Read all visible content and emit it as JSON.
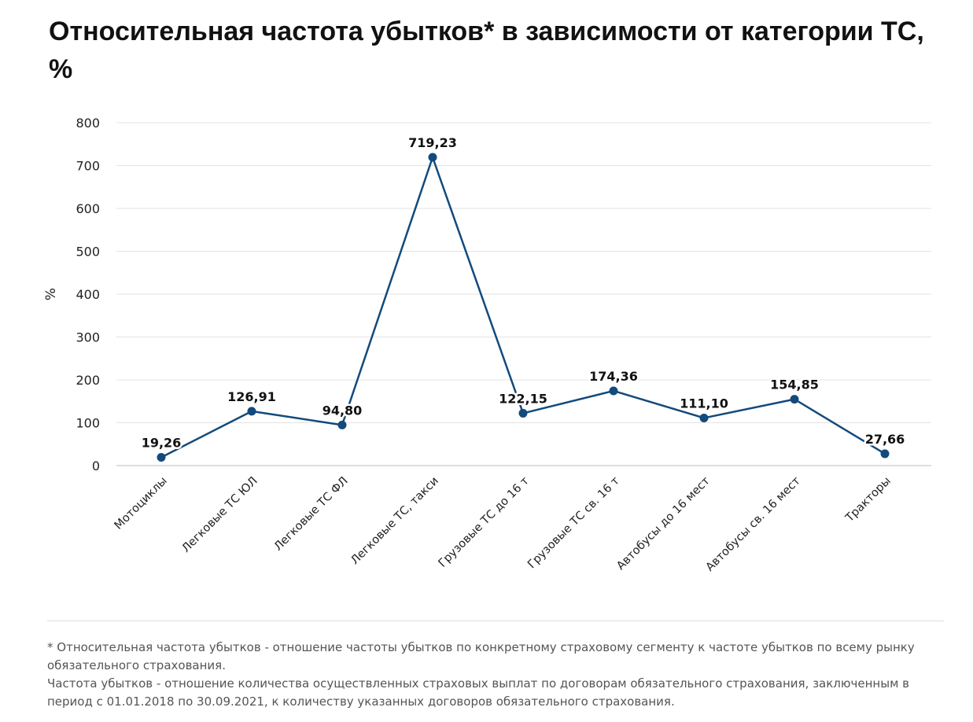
{
  "title": "Относительная частота убытков* в зависимости от категории ТС, %",
  "chart_data": {
    "type": "line",
    "ylabel": "%",
    "ylim": [
      0,
      800
    ],
    "yticks": [
      0,
      100,
      200,
      300,
      400,
      500,
      600,
      700,
      800
    ],
    "grid": true,
    "categories": [
      "Мотоциклы",
      "Легковые ТС ЮЛ",
      "Легковые ТС ФЛ",
      "Легковые ТС, такси",
      "Грузовые ТС до 16 т",
      "Грузовые ТС св. 16 т",
      "Автобусы до 16 мест",
      "Автобусы св. 16 мест",
      "Тракторы"
    ],
    "values": [
      19.26,
      126.91,
      94.8,
      719.23,
      122.15,
      174.36,
      111.1,
      154.85,
      27.66
    ],
    "value_labels": [
      "19,26",
      "126,91",
      "94,80",
      "719,23",
      "122,15",
      "174,36",
      "111,10",
      "154,85",
      "27,66"
    ],
    "color": "#134a7c"
  },
  "footnotes": [
    "* Относительная частота убытков - отношение частоты убытков по конкретному страховому сегменту к частоте убытков по всему рынку обязательного страхования.",
    "Частота убытков - отношение количества осуществленных страховых выплат по договорам обязательного страхования, заключенным в период с 01.01.2018 по 30.09.2021, к количеству указанных договоров обязательного страхования."
  ]
}
